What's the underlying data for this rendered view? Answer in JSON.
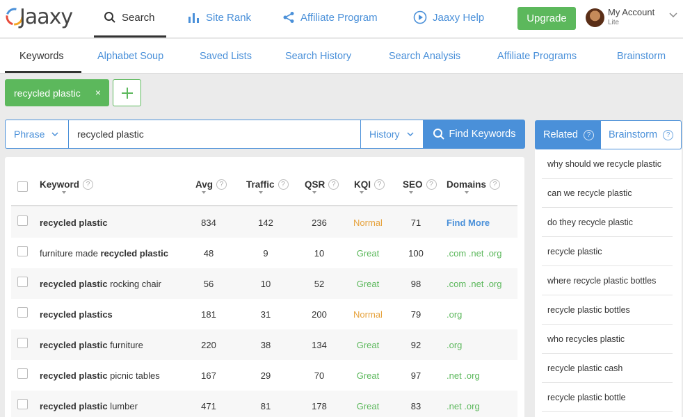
{
  "topnav": {
    "logo_text": "Jaaxy",
    "items": [
      {
        "label": "Search",
        "icon": "search-icon"
      },
      {
        "label": "Site Rank",
        "icon": "bar-chart-icon"
      },
      {
        "label": "Affiliate Program",
        "icon": "share-icon"
      },
      {
        "label": "Jaaxy Help",
        "icon": "play-circle-icon"
      }
    ],
    "upgrade_label": "Upgrade",
    "account_title": "My Account",
    "account_plan": "Lite"
  },
  "subnav": {
    "items": [
      "Keywords",
      "Alphabet Soup",
      "Saved Lists",
      "Search History",
      "Search Analysis",
      "Affiliate Programs",
      "Brainstorm"
    ]
  },
  "tag": {
    "label": "recycled plastic",
    "close": "×"
  },
  "search": {
    "phrase_label": "Phrase",
    "query": "recycled plastic",
    "history_label": "History",
    "find_label": "Find Keywords"
  },
  "table": {
    "headers": [
      "Keyword",
      "Avg",
      "Traffic",
      "QSR",
      "KQI",
      "SEO",
      "Domains"
    ],
    "rows": [
      {
        "kw_pre": "",
        "kw_bold": "recycled plastic",
        "kw_post": "",
        "avg": "834",
        "traffic": "142",
        "qsr": "236",
        "kqi": "Normal",
        "seo": "71",
        "domains": "Find More"
      },
      {
        "kw_pre": "furniture made ",
        "kw_bold": "recycled plastic",
        "kw_post": "",
        "avg": "48",
        "traffic": "9",
        "qsr": "10",
        "kqi": "Great",
        "seo": "100",
        "domains": ".com .net .org"
      },
      {
        "kw_pre": "",
        "kw_bold": "recycled plastic",
        "kw_post": " rocking chair",
        "avg": "56",
        "traffic": "10",
        "qsr": "52",
        "kqi": "Great",
        "seo": "98",
        "domains": ".com .net .org"
      },
      {
        "kw_pre": "",
        "kw_bold": "recycled plastics",
        "kw_post": "",
        "avg": "181",
        "traffic": "31",
        "qsr": "200",
        "kqi": "Normal",
        "seo": "79",
        "domains": ".org"
      },
      {
        "kw_pre": "",
        "kw_bold": "recycled plastic",
        "kw_post": " furniture",
        "avg": "220",
        "traffic": "38",
        "qsr": "134",
        "kqi": "Great",
        "seo": "92",
        "domains": ".org"
      },
      {
        "kw_pre": "",
        "kw_bold": "recycled plastic",
        "kw_post": " picnic tables",
        "avg": "167",
        "traffic": "29",
        "qsr": "70",
        "kqi": "Great",
        "seo": "97",
        "domains": ".net .org"
      },
      {
        "kw_pre": "",
        "kw_bold": "recycled plastic",
        "kw_post": " lumber",
        "avg": "471",
        "traffic": "81",
        "qsr": "178",
        "kqi": "Great",
        "seo": "83",
        "domains": ".net .org"
      }
    ]
  },
  "sidebar": {
    "tabs": [
      "Related",
      "Brainstorm"
    ],
    "items": [
      "why should we recycle plastic",
      "can we recycle plastic",
      "do they recycle plastic",
      "recycle plastic",
      "where recycle plastic bottles",
      "recycle plastic bottles",
      "who recycles plastic",
      "recycle plastic cash",
      "recycle plastic bottle"
    ]
  },
  "colors": {
    "accent": "#4a90d9",
    "green": "#5cb85c",
    "orange": "#e6a23c"
  }
}
